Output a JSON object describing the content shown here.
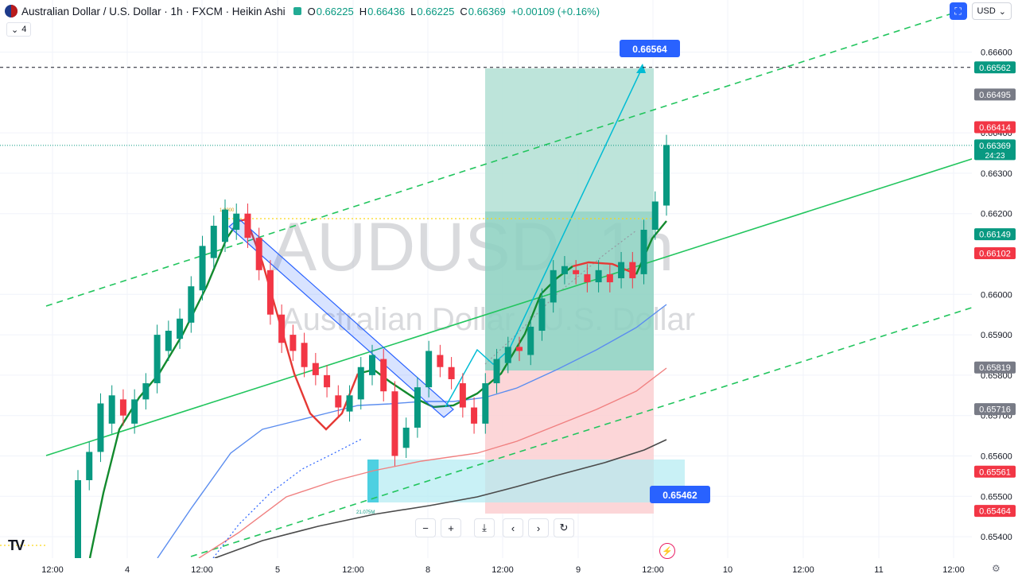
{
  "header": {
    "title": "Australian Dollar / U.S. Dollar · 1h · FXCM · Heikin Ashi",
    "o_label": "O",
    "o": "0.66225",
    "h_label": "H",
    "h": "0.66436",
    "l_label": "L",
    "l": "0.66225",
    "c_label": "C",
    "c": "0.66369",
    "change": "+0.00109 (+0.16%)"
  },
  "indicator_count": "4",
  "currency": "USD",
  "watermark": {
    "symbol": "AUDUSD, 1h",
    "name": "Australian Dollar / U.S. Dollar"
  },
  "colors": {
    "up": "#089981",
    "down": "#f23645",
    "tp_zone": "#b2dfd3",
    "sl_zone": "#fbcfd1",
    "channel": "#22c55e",
    "label_blue": "#2962ff"
  },
  "icons": [
    "candle-type-icon",
    "chevron-down-icon",
    "fullscreen-icon",
    "minus-icon",
    "plus-icon",
    "reset-zoom-icon",
    "chevron-left-icon",
    "chevron-right-icon",
    "refresh-icon",
    "lightning-icon",
    "gear-icon",
    "tradingview-logo-icon"
  ],
  "toolbar": {
    "zoom_out": "−",
    "zoom_in": "+",
    "reset": "⤓",
    "back": "‹",
    "forward": "›",
    "refresh": "↻"
  },
  "chart_data": {
    "type": "candlestick",
    "symbol": "AUDUSD",
    "timeframe": "1h",
    "style": "Heikin Ashi",
    "ylim": [
      0.6539,
      0.6671
    ],
    "price_ticks": [
      "0.66600",
      "0.66400",
      "0.66300",
      "0.66200",
      "0.66000",
      "0.65900",
      "0.65800",
      "0.65700",
      "0.65600",
      "0.65500",
      "0.65400"
    ],
    "time_ticks": [
      "12:00",
      "4",
      "12:00",
      "5",
      "12:00",
      "8",
      "12:00",
      "9",
      "12:00",
      "10",
      "12:00",
      "11",
      "12:00"
    ],
    "price_labels": [
      {
        "value": "0.66562",
        "kind": "dashed-line",
        "color": "#089981"
      },
      {
        "value": "0.66495",
        "kind": "level",
        "color": "#787b86"
      },
      {
        "value": "0.66414",
        "kind": "level",
        "color": "#f23645"
      },
      {
        "value": "0.66369",
        "kind": "last",
        "color": "#089981",
        "countdown": "24:23"
      },
      {
        "value": "0.66149",
        "kind": "level",
        "color": "#089981"
      },
      {
        "value": "0.66102",
        "kind": "level",
        "color": "#f23645"
      },
      {
        "value": "0.65819",
        "kind": "level",
        "color": "#787b86"
      },
      {
        "value": "0.65716",
        "kind": "level",
        "color": "#787b86"
      },
      {
        "value": "0.65561",
        "kind": "level",
        "color": "#f23645"
      },
      {
        "value": "0.65464",
        "kind": "level",
        "color": "#f23645"
      }
    ],
    "callouts": [
      {
        "text": "0.66564"
      },
      {
        "text": "0.65462"
      }
    ],
    "small_labels": {
      "top": "1.0000",
      "bottom": "21.075M"
    },
    "candles": [
      [
        0.6533,
        0.6554
      ],
      [
        0.6554,
        0.6561
      ],
      [
        0.6561,
        0.6573
      ],
      [
        0.6568,
        0.6575
      ],
      [
        0.6574,
        0.657
      ],
      [
        0.6568,
        0.6574
      ],
      [
        0.6574,
        0.6578
      ],
      [
        0.6578,
        0.659
      ],
      [
        0.6586,
        0.6591
      ],
      [
        0.6589,
        0.6594
      ],
      [
        0.6593,
        0.6602
      ],
      [
        0.6601,
        0.6612
      ],
      [
        0.6609,
        0.6617
      ],
      [
        0.6613,
        0.6621
      ],
      [
        0.6616,
        0.662
      ],
      [
        0.662,
        0.6614
      ],
      [
        0.6614,
        0.6606
      ],
      [
        0.6606,
        0.6595
      ],
      [
        0.6595,
        0.6588
      ],
      [
        0.659,
        0.6586
      ],
      [
        0.6588,
        0.6582
      ],
      [
        0.6583,
        0.658
      ],
      [
        0.658,
        0.6577
      ],
      [
        0.6575,
        0.6572
      ],
      [
        0.6571,
        0.6575
      ],
      [
        0.6574,
        0.6582
      ],
      [
        0.658,
        0.6585
      ],
      [
        0.6584,
        0.6576
      ],
      [
        0.6576,
        0.656
      ],
      [
        0.6562,
        0.6567
      ],
      [
        0.6567,
        0.6577
      ],
      [
        0.6577,
        0.6586
      ],
      [
        0.6585,
        0.6582
      ],
      [
        0.6582,
        0.6579
      ],
      [
        0.6578,
        0.6572
      ],
      [
        0.6572,
        0.6568
      ],
      [
        0.6568,
        0.6578
      ],
      [
        0.6578,
        0.6584
      ],
      [
        0.6583,
        0.6587
      ],
      [
        0.6587,
        0.6586
      ],
      [
        0.6585,
        0.6592
      ],
      [
        0.6591,
        0.6599
      ],
      [
        0.6598,
        0.6606
      ],
      [
        0.6605,
        0.6607
      ],
      [
        0.6606,
        0.6605
      ],
      [
        0.6605,
        0.6603
      ],
      [
        0.6603,
        0.6606
      ],
      [
        0.6605,
        0.6603
      ],
      [
        0.6604,
        0.6608
      ],
      [
        0.6608,
        0.6604
      ],
      [
        0.6605,
        0.6616
      ],
      [
        0.6616,
        0.6623
      ],
      [
        0.6622,
        0.6637
      ]
    ]
  }
}
